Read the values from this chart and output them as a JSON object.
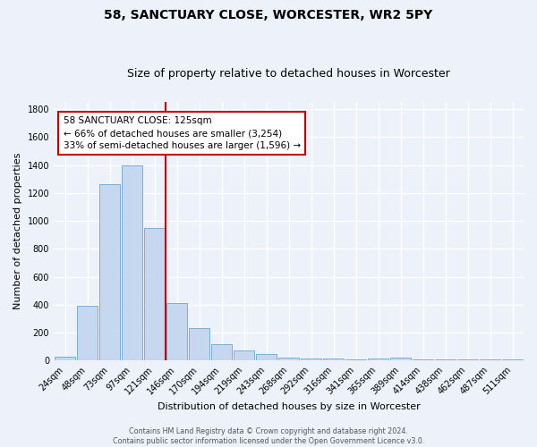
{
  "title1": "58, SANCTUARY CLOSE, WORCESTER, WR2 5PY",
  "title2": "Size of property relative to detached houses in Worcester",
  "xlabel": "Distribution of detached houses by size in Worcester",
  "ylabel": "Number of detached properties",
  "categories": [
    "24sqm",
    "48sqm",
    "73sqm",
    "97sqm",
    "121sqm",
    "146sqm",
    "170sqm",
    "194sqm",
    "219sqm",
    "243sqm",
    "268sqm",
    "292sqm",
    "316sqm",
    "341sqm",
    "365sqm",
    "389sqm",
    "414sqm",
    "438sqm",
    "462sqm",
    "487sqm",
    "511sqm"
  ],
  "values": [
    30,
    390,
    1260,
    1395,
    950,
    410,
    235,
    120,
    70,
    45,
    20,
    15,
    15,
    10,
    15,
    20,
    5,
    5,
    5,
    5,
    5
  ],
  "bar_color": "#c5d8f0",
  "bar_edge_color": "#7aafd4",
  "vline_color": "#cc0000",
  "annotation_text": "58 SANCTUARY CLOSE: 125sqm\n← 66% of detached houses are smaller (3,254)\n33% of semi-detached houses are larger (1,596) →",
  "annotation_box_color": "#ffffff",
  "annotation_box_edge_color": "#cc0000",
  "ylim": [
    0,
    1850
  ],
  "yticks": [
    0,
    200,
    400,
    600,
    800,
    1000,
    1200,
    1400,
    1600,
    1800
  ],
  "footnote": "Contains HM Land Registry data © Crown copyright and database right 2024.\nContains public sector information licensed under the Open Government Licence v3.0.",
  "bg_color": "#edf2fa",
  "plot_bg_color": "#edf2fa",
  "grid_color": "#ffffff",
  "title1_fontsize": 10,
  "title2_fontsize": 9,
  "ylabel_fontsize": 8,
  "xlabel_fontsize": 8,
  "tick_fontsize": 7,
  "annot_fontsize": 7.5
}
